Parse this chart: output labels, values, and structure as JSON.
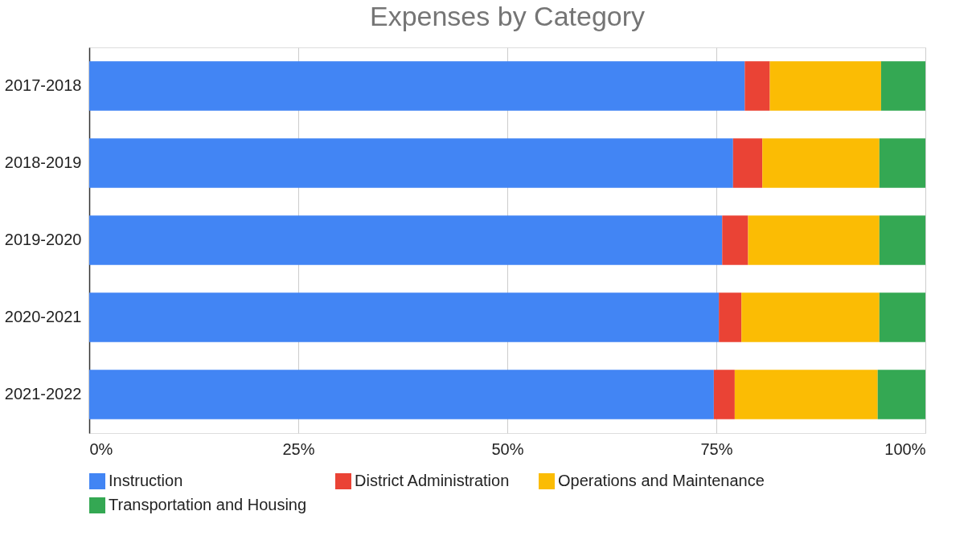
{
  "chart_data": {
    "type": "bar",
    "title": "Expenses by Category",
    "orientation": "horizontal",
    "stacked": true,
    "categories": [
      "2017-2018",
      "2018-2019",
      "2019-2020",
      "2020-2021",
      "2021-2022"
    ],
    "series": [
      {
        "name": "Instruction",
        "color": "#4285f4",
        "values": [
          78.4,
          77.0,
          75.7,
          75.3,
          74.7
        ]
      },
      {
        "name": "District Administration",
        "color": "#ea4335",
        "values": [
          3.0,
          3.5,
          3.1,
          2.7,
          2.5
        ]
      },
      {
        "name": "Operations and Maintenance",
        "color": "#fbbc04",
        "values": [
          13.3,
          14.0,
          15.7,
          16.5,
          17.1
        ]
      },
      {
        "name": "Transportation and Housing",
        "color": "#34a853",
        "values": [
          5.3,
          5.5,
          5.5,
          5.5,
          5.7
        ]
      }
    ],
    "xlim": [
      0,
      100
    ],
    "xticks": [
      {
        "value": 0,
        "label": "0%"
      },
      {
        "value": 25,
        "label": "25%"
      },
      {
        "value": 50,
        "label": "50%"
      },
      {
        "value": 75,
        "label": "75%"
      },
      {
        "value": 100,
        "label": "100%"
      }
    ],
    "grid": "x",
    "legend": "bottom"
  }
}
